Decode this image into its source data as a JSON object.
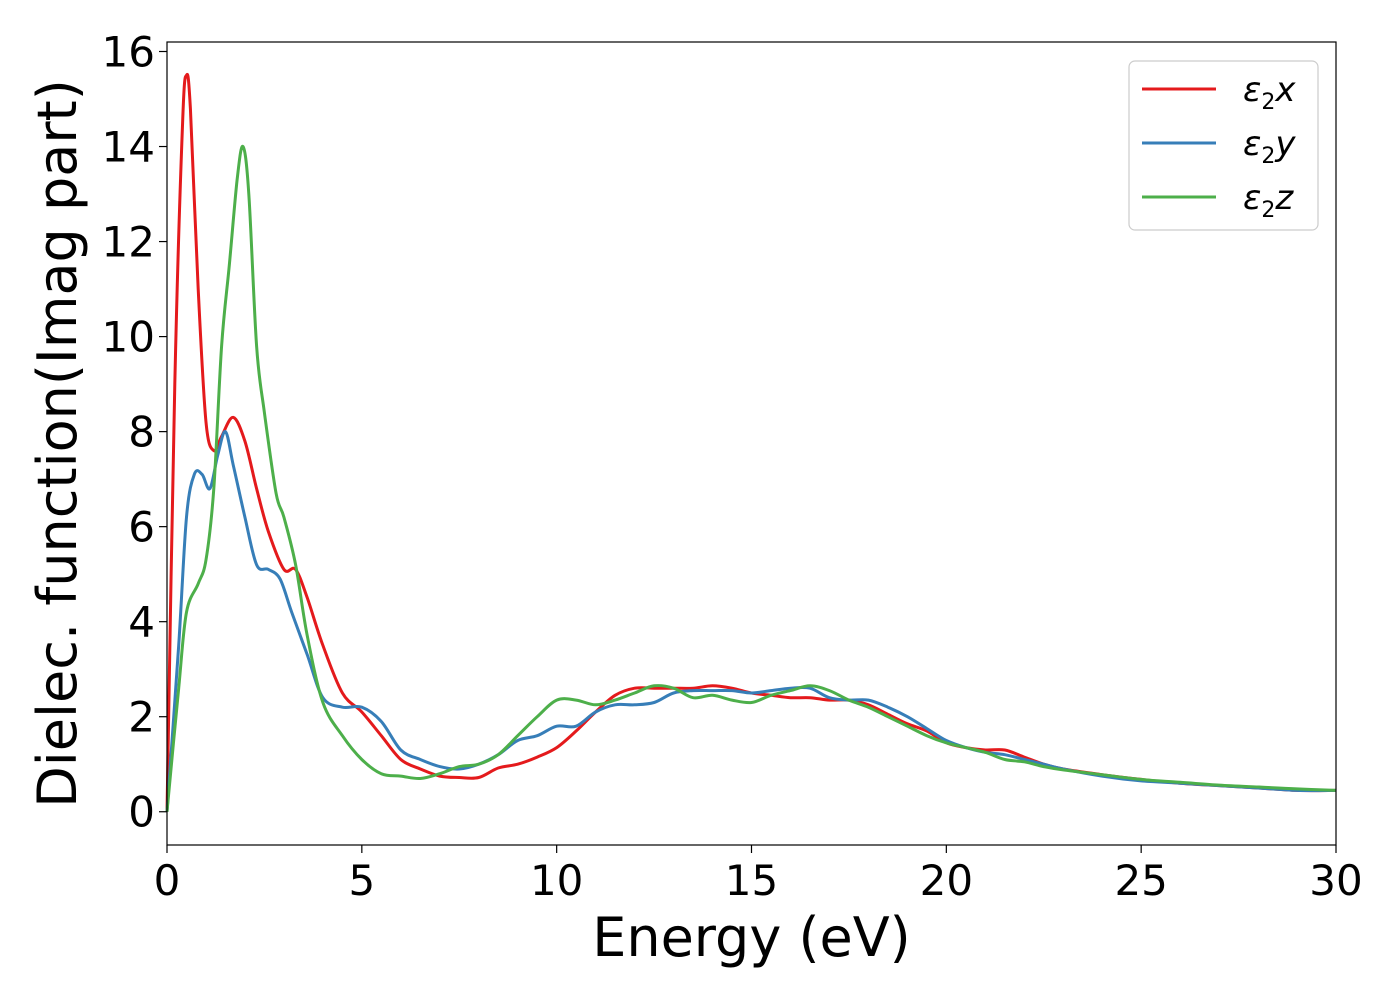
{
  "chart_data": {
    "type": "line",
    "xlabel": "Energy (eV)",
    "ylabel": "Dielec. function(Imag part)",
    "xlim": [
      0,
      30
    ],
    "ylim": [
      -0.7,
      16.2
    ],
    "xticks": [
      0,
      5,
      10,
      15,
      20,
      25,
      30
    ],
    "yticks": [
      0,
      2,
      4,
      6,
      8,
      10,
      12,
      14,
      16
    ],
    "grid": false,
    "legend_position": "top-right",
    "series": [
      {
        "name": "ε2x",
        "legend": {
          "base": "ε",
          "sub": "2",
          "var": "x"
        },
        "color": "#e41a1c",
        "x": [
          0,
          0.2,
          0.4,
          0.5,
          0.6,
          0.8,
          1.0,
          1.2,
          1.4,
          1.7,
          2.0,
          2.3,
          2.6,
          3.0,
          3.3,
          3.6,
          4.0,
          4.5,
          5.0,
          5.5,
          6.0,
          6.5,
          7.0,
          7.5,
          8.0,
          8.5,
          9.0,
          9.5,
          10.0,
          10.5,
          11.0,
          11.5,
          12.0,
          12.5,
          13.0,
          13.5,
          14.0,
          14.5,
          15.0,
          15.5,
          16.0,
          16.5,
          17.0,
          17.5,
          18.0,
          18.5,
          19.0,
          19.5,
          20.0,
          20.5,
          21.0,
          21.5,
          22.0,
          22.5,
          23.0,
          24.0,
          25.0,
          26.0,
          27.0,
          28.0,
          29.0,
          30.0
        ],
        "y": [
          0,
          9,
          14.5,
          15.5,
          14.8,
          11,
          8.2,
          7.6,
          7.9,
          8.3,
          7.8,
          6.8,
          5.9,
          5.1,
          5.1,
          4.5,
          3.5,
          2.5,
          2.1,
          1.6,
          1.1,
          0.9,
          0.75,
          0.72,
          0.72,
          0.92,
          1.0,
          1.15,
          1.35,
          1.7,
          2.1,
          2.45,
          2.6,
          2.6,
          2.6,
          2.6,
          2.65,
          2.6,
          2.5,
          2.45,
          2.4,
          2.4,
          2.35,
          2.35,
          2.25,
          2.05,
          1.85,
          1.7,
          1.45,
          1.35,
          1.3,
          1.3,
          1.15,
          1.0,
          0.9,
          0.78,
          0.68,
          0.6,
          0.55,
          0.5,
          0.45,
          0.45
        ]
      },
      {
        "name": "ε2y",
        "legend": {
          "base": "ε",
          "sub": "2",
          "var": "y"
        },
        "color": "#377eb8",
        "x": [
          0,
          0.3,
          0.5,
          0.7,
          0.9,
          1.1,
          1.3,
          1.5,
          1.7,
          2.0,
          2.3,
          2.6,
          2.9,
          3.2,
          3.6,
          4.0,
          4.5,
          5.0,
          5.5,
          6.0,
          6.5,
          7.0,
          7.5,
          8.0,
          8.5,
          9.0,
          9.5,
          10.0,
          10.5,
          11.0,
          11.5,
          12.0,
          12.5,
          13.0,
          13.5,
          14.0,
          14.5,
          15.0,
          15.5,
          16.0,
          16.5,
          17.0,
          17.5,
          18.0,
          18.5,
          19.0,
          19.5,
          20.0,
          20.5,
          21.0,
          21.5,
          22.0,
          22.5,
          23.0,
          24.0,
          25.0,
          26.0,
          27.0,
          28.0,
          29.0,
          30.0
        ],
        "y": [
          0,
          3.5,
          6.2,
          7.1,
          7.1,
          6.8,
          7.5,
          8.0,
          7.3,
          6.2,
          5.2,
          5.1,
          4.9,
          4.2,
          3.3,
          2.4,
          2.2,
          2.2,
          1.9,
          1.3,
          1.1,
          0.95,
          0.9,
          1.0,
          1.2,
          1.5,
          1.6,
          1.8,
          1.8,
          2.1,
          2.25,
          2.25,
          2.3,
          2.5,
          2.55,
          2.55,
          2.55,
          2.5,
          2.55,
          2.6,
          2.6,
          2.4,
          2.35,
          2.35,
          2.2,
          2.0,
          1.75,
          1.5,
          1.35,
          1.25,
          1.2,
          1.1,
          1.0,
          0.9,
          0.75,
          0.65,
          0.6,
          0.55,
          0.5,
          0.45,
          0.45
        ]
      },
      {
        "name": "ε2z",
        "legend": {
          "base": "ε",
          "sub": "2",
          "var": "z"
        },
        "color": "#4daf4a",
        "x": [
          0,
          0.3,
          0.5,
          0.8,
          1.0,
          1.2,
          1.4,
          1.6,
          1.8,
          1.95,
          2.1,
          2.3,
          2.5,
          2.8,
          3.0,
          3.3,
          3.6,
          4.0,
          4.5,
          5.0,
          5.5,
          6.0,
          6.5,
          7.0,
          7.5,
          8.0,
          8.5,
          9.0,
          9.5,
          10.0,
          10.5,
          11.0,
          11.5,
          12.0,
          12.5,
          13.0,
          13.5,
          14.0,
          14.5,
          15.0,
          15.5,
          16.0,
          16.5,
          17.0,
          17.5,
          18.0,
          18.5,
          19.0,
          19.5,
          20.0,
          20.5,
          21.0,
          21.5,
          22.0,
          22.5,
          23.0,
          24.0,
          25.0,
          26.0,
          27.0,
          28.0,
          29.0,
          30.0
        ],
        "y": [
          0,
          2.6,
          4.2,
          4.8,
          5.3,
          6.8,
          9.8,
          11.5,
          13.3,
          14.0,
          13.0,
          9.8,
          8.4,
          6.7,
          6.2,
          5.2,
          3.7,
          2.3,
          1.6,
          1.1,
          0.8,
          0.75,
          0.7,
          0.8,
          0.95,
          1.0,
          1.2,
          1.6,
          2.0,
          2.35,
          2.35,
          2.25,
          2.35,
          2.5,
          2.65,
          2.6,
          2.4,
          2.45,
          2.35,
          2.3,
          2.45,
          2.55,
          2.65,
          2.55,
          2.35,
          2.2,
          2.0,
          1.8,
          1.6,
          1.45,
          1.35,
          1.25,
          1.1,
          1.05,
          0.95,
          0.88,
          0.78,
          0.68,
          0.62,
          0.56,
          0.52,
          0.48,
          0.45
        ]
      }
    ]
  }
}
